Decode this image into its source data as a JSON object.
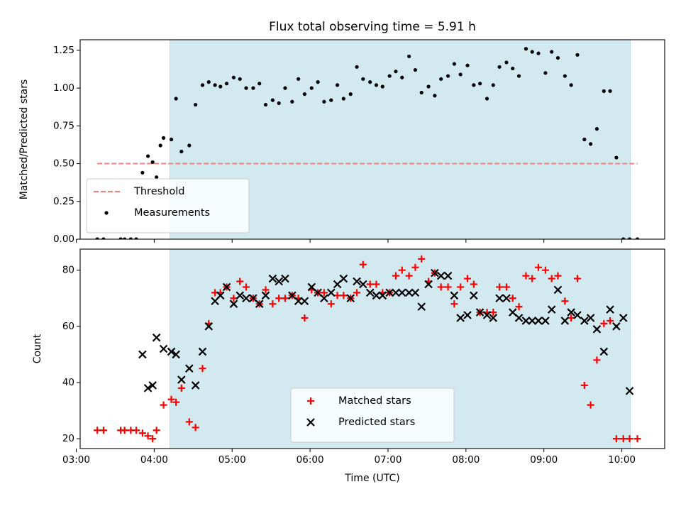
{
  "chart_data": [
    {
      "type": "scatter",
      "title": "Flux total observing time = 5.91 h",
      "xlabel": "",
      "ylabel": "Matched/Predicted stars",
      "xlim": [
        3.05,
        10.55
      ],
      "ylim": [
        0.0,
        1.32
      ],
      "yticks": [
        0.0,
        0.25,
        0.5,
        0.75,
        1.0,
        1.25
      ],
      "ytick_labels": [
        "0.00",
        "0.25",
        "0.50",
        "0.75",
        "1.00",
        "1.25"
      ],
      "xticks": [
        3,
        4,
        5,
        6,
        7,
        8,
        9,
        10
      ],
      "shaded_span": [
        4.2,
        10.11
      ],
      "shade_color": "#d3e9f0",
      "legend_position": "lower-left",
      "threshold": {
        "name": "Threshold",
        "value": 0.5,
        "x": [
          3.27,
          10.2
        ],
        "color": "#f08080",
        "style": "dashed"
      },
      "series": [
        {
          "name": "Measurements",
          "color": "#000000",
          "marker": "dot",
          "x": [
            3.27,
            3.35,
            3.57,
            3.62,
            3.7,
            3.77,
            3.85,
            3.92,
            3.98,
            4.03,
            4.08,
            4.12,
            4.22,
            4.28,
            4.35,
            4.45,
            4.53,
            4.62,
            4.7,
            4.78,
            4.85,
            4.93,
            5.02,
            5.1,
            5.18,
            5.27,
            5.35,
            5.43,
            5.52,
            5.6,
            5.68,
            5.77,
            5.85,
            5.93,
            6.02,
            6.1,
            6.18,
            6.27,
            6.35,
            6.43,
            6.52,
            6.6,
            6.68,
            6.77,
            6.85,
            6.93,
            7.02,
            7.1,
            7.18,
            7.27,
            7.35,
            7.43,
            7.52,
            7.6,
            7.68,
            7.77,
            7.85,
            7.93,
            8.02,
            8.1,
            8.18,
            8.27,
            8.35,
            8.43,
            8.52,
            8.6,
            8.68,
            8.77,
            8.85,
            8.93,
            9.02,
            9.1,
            9.18,
            9.27,
            9.35,
            9.43,
            9.52,
            9.6,
            9.68,
            9.77,
            9.85,
            9.93,
            10.02,
            10.1,
            10.2
          ],
          "y": [
            0.0,
            0.0,
            0.0,
            0.0,
            0.0,
            0.0,
            0.44,
            0.55,
            0.51,
            0.41,
            0.62,
            0.67,
            0.66,
            0.93,
            0.58,
            0.62,
            0.89,
            1.02,
            1.04,
            1.02,
            1.01,
            1.03,
            1.07,
            1.06,
            1.0,
            1.0,
            1.03,
            0.89,
            0.92,
            0.9,
            1.0,
            0.91,
            1.06,
            0.96,
            1.0,
            1.04,
            0.91,
            0.92,
            1.02,
            0.93,
            0.96,
            1.14,
            1.06,
            1.04,
            1.02,
            1.01,
            1.08,
            1.11,
            1.07,
            1.21,
            1.12,
            0.97,
            1.01,
            0.95,
            1.06,
            1.08,
            1.16,
            1.09,
            1.15,
            1.02,
            1.03,
            0.93,
            1.02,
            1.14,
            1.17,
            1.13,
            1.08,
            1.26,
            1.24,
            1.23,
            1.1,
            1.24,
            1.2,
            1.08,
            1.02,
            1.22,
            0.66,
            0.63,
            0.73,
            0.98,
            0.98,
            0.54,
            0.0,
            0.0,
            0.0
          ]
        }
      ]
    },
    {
      "type": "scatter",
      "title": "",
      "xlabel": "Time (UTC)",
      "ylabel": "Count",
      "xlim": [
        3.05,
        10.55
      ],
      "ylim": [
        16.5,
        87.5
      ],
      "yticks": [
        20,
        40,
        60,
        80
      ],
      "ytick_labels": [
        "20",
        "40",
        "60",
        "80"
      ],
      "xticks": [
        3,
        4,
        5,
        6,
        7,
        8,
        9,
        10
      ],
      "xtick_labels": [
        "03:00",
        "04:00",
        "05:00",
        "06:00",
        "07:00",
        "08:00",
        "09:00",
        "10:00"
      ],
      "shaded_span": [
        4.2,
        10.11
      ],
      "shade_color": "#d3e9f0",
      "legend_position": "lower-center",
      "series": [
        {
          "name": "Matched stars",
          "color": "#ff0000",
          "marker": "plus",
          "x": [
            3.27,
            3.35,
            3.57,
            3.62,
            3.7,
            3.77,
            3.85,
            3.92,
            3.98,
            4.03,
            4.12,
            4.22,
            4.28,
            4.35,
            4.45,
            4.53,
            4.62,
            4.7,
            4.78,
            4.85,
            4.93,
            5.02,
            5.1,
            5.18,
            5.27,
            5.35,
            5.43,
            5.52,
            5.6,
            5.68,
            5.77,
            5.85,
            5.93,
            6.02,
            6.1,
            6.18,
            6.27,
            6.35,
            6.43,
            6.52,
            6.6,
            6.68,
            6.77,
            6.85,
            6.93,
            7.02,
            7.1,
            7.18,
            7.27,
            7.35,
            7.43,
            7.52,
            7.6,
            7.68,
            7.77,
            7.85,
            7.93,
            8.02,
            8.1,
            8.18,
            8.27,
            8.35,
            8.43,
            8.52,
            8.6,
            8.68,
            8.77,
            8.85,
            8.93,
            9.02,
            9.1,
            9.18,
            9.27,
            9.35,
            9.43,
            9.52,
            9.6,
            9.68,
            9.77,
            9.85,
            9.93,
            10.02,
            10.1,
            10.2
          ],
          "y": [
            23,
            23,
            23,
            23,
            23,
            23,
            22,
            21,
            20,
            23,
            32,
            34,
            33,
            38,
            26,
            24,
            45,
            61,
            72,
            72,
            74,
            70,
            76,
            74,
            70,
            68,
            73,
            68,
            70,
            70,
            71,
            70,
            63,
            73,
            72,
            72,
            68,
            71,
            71,
            70,
            72,
            82,
            75,
            75,
            72,
            72,
            78,
            80,
            78,
            81,
            84,
            76,
            79,
            74,
            74,
            68,
            74,
            77,
            75,
            65,
            65,
            65,
            74,
            74,
            70,
            67,
            78,
            77,
            81,
            80,
            77,
            78,
            69,
            63,
            77,
            39,
            32,
            48,
            61,
            62,
            20,
            20,
            20,
            20
          ]
        },
        {
          "name": "Predicted stars",
          "color": "#000000",
          "marker": "x",
          "x": [
            3.85,
            3.92,
            3.98,
            4.03,
            4.12,
            4.22,
            4.28,
            4.35,
            4.45,
            4.53,
            4.62,
            4.7,
            4.78,
            4.85,
            4.93,
            5.02,
            5.1,
            5.18,
            5.27,
            5.35,
            5.43,
            5.52,
            5.6,
            5.68,
            5.77,
            5.85,
            5.93,
            6.02,
            6.1,
            6.18,
            6.27,
            6.35,
            6.43,
            6.52,
            6.6,
            6.68,
            6.77,
            6.85,
            6.93,
            7.02,
            7.1,
            7.18,
            7.27,
            7.35,
            7.43,
            7.52,
            7.6,
            7.68,
            7.77,
            7.85,
            7.93,
            8.02,
            8.1,
            8.18,
            8.27,
            8.35,
            8.43,
            8.52,
            8.6,
            8.68,
            8.77,
            8.85,
            8.93,
            9.02,
            9.1,
            9.18,
            9.27,
            9.35,
            9.43,
            9.52,
            9.6,
            9.68,
            9.77,
            9.85,
            9.93,
            10.02,
            10.1
          ],
          "y": [
            50,
            38,
            39,
            56,
            52,
            51,
            50,
            41,
            45,
            39,
            51,
            60,
            69,
            71,
            74,
            68,
            71,
            70,
            70,
            68,
            71,
            77,
            76,
            77,
            71,
            69,
            69,
            74,
            72,
            70,
            72,
            75,
            77,
            70,
            76,
            75,
            72,
            71,
            71,
            72,
            72,
            72,
            72,
            72,
            67,
            75,
            79,
            78,
            78,
            71,
            63,
            64,
            71,
            65,
            64,
            63,
            70,
            70,
            65,
            63,
            62,
            62,
            62,
            62,
            66,
            73,
            62,
            65,
            64,
            62,
            63,
            59,
            51,
            66,
            60,
            63,
            37
          ]
        }
      ]
    }
  ]
}
